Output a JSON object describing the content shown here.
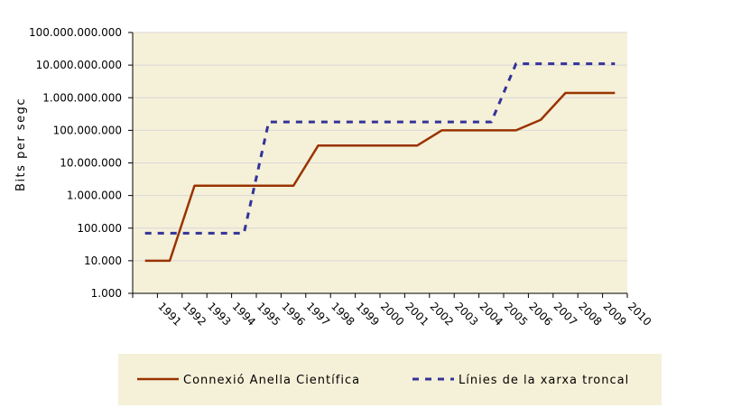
{
  "chart_data": {
    "type": "line",
    "ylabel": "Bits per segc",
    "yscale": "log",
    "ylim": [
      1000,
      100000000000
    ],
    "y_ticks": [
      {
        "value": 1000,
        "label": "1.000"
      },
      {
        "value": 10000,
        "label": "10.000"
      },
      {
        "value": 100000,
        "label": "100.000"
      },
      {
        "value": 1000000,
        "label": "1.000.000"
      },
      {
        "value": 10000000,
        "label": "10.000.000"
      },
      {
        "value": 100000000,
        "label": "100.000.000"
      },
      {
        "value": 1000000000,
        "label": "1.000.000.000"
      },
      {
        "value": 10000000000,
        "label": "10.000.000.000"
      },
      {
        "value": 100000000000,
        "label": "100.000.000.000"
      }
    ],
    "categories": [
      "1991",
      "1992",
      "1993",
      "1994",
      "1995",
      "1996",
      "1997",
      "1998",
      "1999",
      "2000",
      "2001",
      "2002",
      "2003",
      "2004",
      "2005",
      "2006",
      "2007",
      "2008",
      "2009",
      "2010"
    ],
    "grid": "horizontal",
    "legend_position": "bottom",
    "series": [
      {
        "name": "Connexió Anella Científica",
        "style": "solid",
        "color": "#993300",
        "values": [
          10000,
          10000,
          2000000,
          2000000,
          2000000,
          2000000,
          2000000,
          34000000,
          34000000,
          34000000,
          34000000,
          34000000,
          100000000,
          100000000,
          100000000,
          100000000,
          210000000,
          1400000000,
          1400000000,
          1400000000
        ]
      },
      {
        "name": "Línies de la xarxa troncal",
        "style": "dashed",
        "color": "#333399",
        "values": [
          70000,
          70000,
          70000,
          70000,
          70000,
          180000000,
          180000000,
          180000000,
          180000000,
          180000000,
          180000000,
          180000000,
          180000000,
          180000000,
          180000000,
          11000000000,
          11000000000,
          11000000000,
          11000000000,
          11000000000
        ]
      }
    ]
  },
  "colors": {
    "plot_background": "#f5f0d8",
    "legend_background": "#f5f0d8",
    "gridline": "#d8d8d8",
    "axis": "#000000"
  }
}
